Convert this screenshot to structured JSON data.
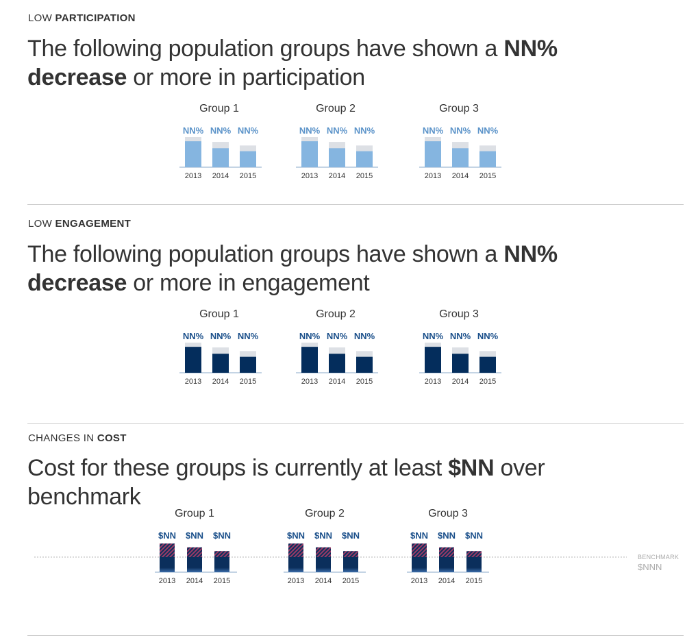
{
  "participation": {
    "eyebrow_pre": "LOW ",
    "eyebrow_bold": "PARTICIPATION",
    "line1_pre": "The following population groups have shown a ",
    "line1_bold": "NN%",
    "line2_bold": "decrease",
    "line2_post": " or more in participation"
  },
  "engagement": {
    "eyebrow_pre": "LOW ",
    "eyebrow_bold": "ENGAGEMENT",
    "line1_pre": "The following population groups have shown a ",
    "line1_bold": "NN%",
    "line2_bold": "decrease",
    "line2_post": " or more in engagement"
  },
  "cost": {
    "eyebrow_pre": "CHANGES IN ",
    "eyebrow_bold": "COST",
    "line1_pre": "Cost for these groups is currently at least ",
    "line1_bold": "$NN",
    "line1_post": " over",
    "line2": "benchmark",
    "benchmark_label": "BENCHMARK",
    "benchmark_value": "$NNN"
  },
  "colors": {
    "participation_bar": "#85b5e0",
    "participation_label": "#5b93c9",
    "engagement_bar": "#042d5c",
    "engagement_label": "#1a4f8a",
    "background_bar": "#dde0e5",
    "cost_base": "#0b2f5c",
    "cost_over": "#9b3a66",
    "cost_label": "#1a4f8a",
    "axis": "#8aa9c8"
  },
  "chart_data": [
    {
      "type": "bar",
      "section": "participation",
      "categories": [
        "2013",
        "2014",
        "2015"
      ],
      "groups": [
        {
          "name": "Group 1",
          "values": [
            86,
            63,
            53
          ],
          "reference": [
            100,
            84,
            72
          ],
          "labels": [
            "NN%",
            "NN%",
            "NN%"
          ]
        },
        {
          "name": "Group 2",
          "values": [
            86,
            63,
            53
          ],
          "reference": [
            100,
            84,
            72
          ],
          "labels": [
            "NN%",
            "NN%",
            "NN%"
          ]
        },
        {
          "name": "Group 3",
          "values": [
            86,
            63,
            53
          ],
          "reference": [
            100,
            84,
            72
          ],
          "labels": [
            "NN%",
            "NN%",
            "NN%"
          ]
        }
      ],
      "ylim": [
        0,
        100
      ]
    },
    {
      "type": "bar",
      "section": "engagement",
      "categories": [
        "2013",
        "2014",
        "2015"
      ],
      "groups": [
        {
          "name": "Group 1",
          "values": [
            86,
            63,
            53
          ],
          "reference": [
            100,
            84,
            72
          ],
          "labels": [
            "NN%",
            "NN%",
            "NN%"
          ]
        },
        {
          "name": "Group 2",
          "values": [
            86,
            63,
            53
          ],
          "reference": [
            100,
            84,
            72
          ],
          "labels": [
            "NN%",
            "NN%",
            "NN%"
          ]
        },
        {
          "name": "Group 3",
          "values": [
            86,
            63,
            53
          ],
          "reference": [
            100,
            84,
            72
          ],
          "labels": [
            "NN%",
            "NN%",
            "NN%"
          ]
        }
      ],
      "ylim": [
        0,
        100
      ]
    },
    {
      "type": "bar",
      "section": "cost",
      "categories": [
        "2013",
        "2014",
        "2015"
      ],
      "benchmark": 100,
      "groups": [
        {
          "name": "Group 1",
          "values": [
            190,
            165,
            140
          ],
          "labels": [
            "$NN",
            "$NN",
            "$NN"
          ]
        },
        {
          "name": "Group 2",
          "values": [
            190,
            165,
            140
          ],
          "labels": [
            "$NN",
            "$NN",
            "$NN"
          ]
        },
        {
          "name": "Group 3",
          "values": [
            190,
            165,
            140
          ],
          "labels": [
            "$NN",
            "$NN",
            "$NN"
          ]
        }
      ],
      "ylim": [
        0,
        200
      ]
    }
  ]
}
